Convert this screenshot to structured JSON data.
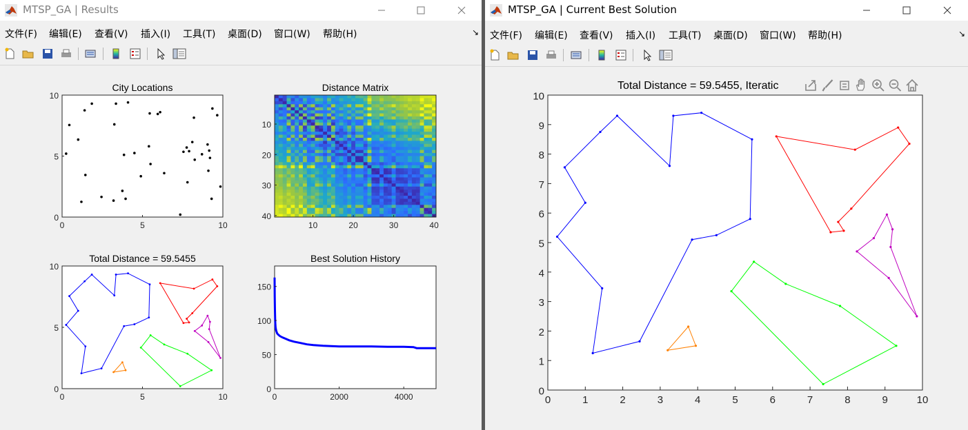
{
  "left_window": {
    "title": "MTSP_GA | Results",
    "menus": [
      "文件(F)",
      "编辑(E)",
      "查看(V)",
      "插入(I)",
      "工具(T)",
      "桌面(D)",
      "窗口(W)",
      "帮助(H)"
    ],
    "toolbar_icons": [
      "new-figure-icon",
      "open-file-icon",
      "save-icon",
      "print-icon",
      "link-plot-icon",
      "colorbar-icon",
      "legend-icon",
      "pointer-icon",
      "property-editor-icon"
    ]
  },
  "right_window": {
    "title": "MTSP_GA | Current Best Solution",
    "menus": [
      "文件(F)",
      "编辑(E)",
      "查看(V)",
      "插入(I)",
      "工具(T)",
      "桌面(D)",
      "窗口(W)",
      "帮助(H)"
    ],
    "toolbar_icons": [
      "new-figure-icon",
      "open-file-icon",
      "save-icon",
      "print-icon",
      "link-plot-icon",
      "colorbar-icon",
      "legend-icon",
      "pointer-icon",
      "property-editor-icon"
    ],
    "axes_toolbar_icons": [
      "export-icon",
      "brush-icon",
      "datatip-icon",
      "pan-icon",
      "zoom-in-icon",
      "zoom-out-icon",
      "home-icon"
    ]
  },
  "route_colors": {
    "blue": "#0000ff",
    "red": "#ff0000",
    "purple": "#bf00bf",
    "green": "#00ff00",
    "orange": "#ff8000"
  },
  "chart_data": [
    {
      "id": "city_locations",
      "type": "scatter",
      "title": "City Locations",
      "xlim": [
        0,
        10
      ],
      "ylim": [
        0,
        10
      ],
      "xticks": [
        "0",
        "5",
        "10"
      ],
      "yticks": [
        "0",
        "5",
        "10"
      ],
      "points": [
        [
          0.25,
          5.2
        ],
        [
          0.45,
          7.55
        ],
        [
          1.0,
          6.35
        ],
        [
          1.2,
          1.25
        ],
        [
          1.4,
          8.75
        ],
        [
          1.45,
          3.45
        ],
        [
          1.85,
          9.3
        ],
        [
          2.45,
          1.65
        ],
        [
          3.25,
          7.6
        ],
        [
          3.35,
          9.3
        ],
        [
          3.2,
          1.35
        ],
        [
          3.75,
          2.15
        ],
        [
          3.85,
          5.1
        ],
        [
          3.95,
          1.5
        ],
        [
          4.1,
          9.4
        ],
        [
          4.5,
          5.25
        ],
        [
          4.9,
          3.35
        ],
        [
          5.4,
          5.8
        ],
        [
          5.45,
          8.5
        ],
        [
          5.5,
          4.35
        ],
        [
          5.95,
          8.45
        ],
        [
          6.1,
          8.6
        ],
        [
          6.35,
          3.6
        ],
        [
          7.35,
          0.2
        ],
        [
          7.55,
          5.35
        ],
        [
          7.75,
          5.7
        ],
        [
          7.8,
          2.85
        ],
        [
          7.9,
          5.4
        ],
        [
          8.1,
          6.15
        ],
        [
          8.2,
          8.15
        ],
        [
          8.25,
          4.7
        ],
        [
          8.7,
          5.15
        ],
        [
          9.05,
          5.95
        ],
        [
          9.1,
          3.8
        ],
        [
          9.15,
          5.45
        ],
        [
          9.2,
          4.85
        ],
        [
          9.3,
          1.5
        ],
        [
          9.35,
          8.9
        ],
        [
          9.65,
          8.35
        ],
        [
          9.85,
          2.5
        ]
      ]
    },
    {
      "id": "distance_matrix",
      "type": "heatmap",
      "title": "Distance Matrix",
      "size": 40,
      "xticks": [
        "10",
        "20",
        "30",
        "40"
      ],
      "yticks": [
        "10",
        "20",
        "30",
        "40"
      ],
      "colormap": "parula"
    },
    {
      "id": "routes_small",
      "type": "line",
      "title": "Total Distance = 59.5455",
      "xlim": [
        0,
        10
      ],
      "ylim": [
        0,
        10
      ],
      "xticks": [
        "0",
        "5",
        "10"
      ],
      "yticks": [
        "0",
        "5",
        "10"
      ],
      "routes_ref": "routes"
    },
    {
      "id": "history",
      "type": "line",
      "title": "Best Solution History",
      "xlim": [
        0,
        5000
      ],
      "ylim": [
        0,
        180
      ],
      "xticks": [
        "0",
        "2000",
        "4000"
      ],
      "yticks": [
        "0",
        "50",
        "100",
        "150"
      ],
      "x": [
        0,
        5,
        10,
        20,
        30,
        50,
        80,
        120,
        170,
        250,
        350,
        450,
        600,
        800,
        1000,
        1200,
        1500,
        2000,
        2500,
        3000,
        3500,
        4000,
        4300,
        4400,
        4600,
        5000
      ],
      "y": [
        163,
        135,
        115,
        98,
        90,
        85,
        81,
        79,
        77,
        75,
        73,
        71,
        69,
        67,
        65,
        64,
        63,
        62,
        62,
        62,
        61.5,
        61.5,
        61,
        59.5,
        59.5,
        59.5
      ]
    },
    {
      "id": "routes_large",
      "type": "line",
      "title": "Total Distance = 59.5455, Iteratic",
      "xlim": [
        0,
        10
      ],
      "ylim": [
        0,
        10
      ],
      "xticks": [
        "0",
        "1",
        "2",
        "3",
        "4",
        "5",
        "6",
        "7",
        "8",
        "9",
        "10"
      ],
      "yticks": [
        "0",
        "1",
        "2",
        "3",
        "4",
        "5",
        "6",
        "7",
        "8",
        "9",
        "10"
      ],
      "routes_ref": "routes"
    }
  ],
  "routes": [
    {
      "color": "blue",
      "points": [
        [
          0.25,
          5.2
        ],
        [
          1.0,
          6.35
        ],
        [
          0.45,
          7.55
        ],
        [
          1.4,
          8.75
        ],
        [
          1.85,
          9.3
        ],
        [
          3.25,
          7.6
        ],
        [
          3.35,
          9.3
        ],
        [
          4.1,
          9.4
        ],
        [
          5.45,
          8.5
        ],
        [
          5.4,
          5.8
        ],
        [
          4.5,
          5.25
        ],
        [
          3.85,
          5.1
        ],
        [
          2.45,
          1.65
        ],
        [
          1.2,
          1.25
        ],
        [
          1.45,
          3.45
        ],
        [
          0.25,
          5.2
        ]
      ]
    },
    {
      "color": "red",
      "points": [
        [
          6.1,
          8.6
        ],
        [
          8.2,
          8.15
        ],
        [
          9.35,
          8.9
        ],
        [
          9.65,
          8.35
        ],
        [
          8.1,
          6.15
        ],
        [
          7.75,
          5.7
        ],
        [
          7.9,
          5.4
        ],
        [
          7.55,
          5.35
        ],
        [
          6.1,
          8.6
        ]
      ]
    },
    {
      "color": "purple",
      "points": [
        [
          8.25,
          4.7
        ],
        [
          8.7,
          5.15
        ],
        [
          9.05,
          5.95
        ],
        [
          9.2,
          5.45
        ],
        [
          9.15,
          4.85
        ],
        [
          9.85,
          2.5
        ],
        [
          9.1,
          3.8
        ],
        [
          8.25,
          4.7
        ]
      ]
    },
    {
      "color": "green",
      "points": [
        [
          4.9,
          3.35
        ],
        [
          5.5,
          4.35
        ],
        [
          6.35,
          3.6
        ],
        [
          7.8,
          2.85
        ],
        [
          9.3,
          1.5
        ],
        [
          7.35,
          0.2
        ],
        [
          4.9,
          3.35
        ]
      ]
    },
    {
      "color": "orange",
      "points": [
        [
          3.2,
          1.35
        ],
        [
          3.75,
          2.15
        ],
        [
          3.95,
          1.5
        ],
        [
          3.2,
          1.35
        ]
      ]
    }
  ]
}
